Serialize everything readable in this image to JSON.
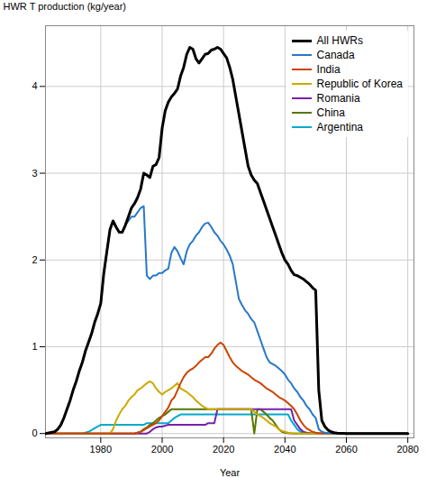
{
  "chart_data": {
    "type": "line",
    "xlabel": "Year",
    "ylabel": "HWR T production (kg/year)",
    "xlim": [
      1962,
      2082
    ],
    "ylim": [
      -0.05,
      4.7
    ],
    "xticks": [
      1980,
      2000,
      2020,
      2040,
      2060,
      2080
    ],
    "yticks": [
      0,
      1,
      2,
      3,
      4
    ],
    "grid": true,
    "legend": "upper right",
    "series": [
      {
        "name": "All HWRs",
        "color": "#000000",
        "x": [
          1962,
          1965,
          1966,
          1967,
          1968,
          1969,
          1970,
          1971,
          1972,
          1973,
          1974,
          1975,
          1976,
          1977,
          1978,
          1979,
          1980,
          1981,
          1982,
          1983,
          1984,
          1985,
          1986,
          1987,
          1988,
          1989,
          1990,
          1991,
          1992,
          1993,
          1994,
          1995,
          1996,
          1997,
          1998,
          1999,
          2000,
          2001,
          2002,
          2003,
          2004,
          2005,
          2006,
          2007,
          2008,
          2009,
          2010,
          2011,
          2012,
          2013,
          2014,
          2015,
          2016,
          2017,
          2018,
          2019,
          2020,
          2021,
          2022,
          2023,
          2024,
          2025,
          2026,
          2027,
          2028,
          2029,
          2030,
          2031,
          2032,
          2033,
          2034,
          2035,
          2036,
          2037,
          2038,
          2039,
          2040,
          2041,
          2042,
          2043,
          2044,
          2045,
          2046,
          2047,
          2048,
          2049,
          2050,
          2051,
          2052,
          2053,
          2054,
          2055,
          2056,
          2057,
          2058,
          2059,
          2060,
          2061,
          2080
        ],
        "values": [
          0.0,
          0.02,
          0.05,
          0.1,
          0.18,
          0.28,
          0.38,
          0.5,
          0.6,
          0.72,
          0.82,
          0.95,
          1.05,
          1.15,
          1.28,
          1.38,
          1.5,
          1.85,
          2.1,
          2.35,
          2.45,
          2.38,
          2.32,
          2.32,
          2.4,
          2.5,
          2.6,
          2.65,
          2.72,
          2.82,
          3.0,
          2.98,
          2.95,
          3.08,
          3.1,
          3.18,
          3.52,
          3.72,
          3.82,
          3.88,
          3.92,
          3.97,
          4.12,
          4.22,
          4.37,
          4.45,
          4.43,
          4.32,
          4.27,
          4.32,
          4.37,
          4.38,
          4.42,
          4.43,
          4.45,
          4.43,
          4.38,
          4.33,
          4.22,
          4.08,
          3.88,
          3.68,
          3.48,
          3.28,
          3.08,
          2.98,
          2.92,
          2.88,
          2.78,
          2.68,
          2.58,
          2.48,
          2.38,
          2.28,
          2.18,
          2.08,
          2.0,
          1.95,
          1.88,
          1.83,
          1.82,
          1.8,
          1.78,
          1.75,
          1.72,
          1.68,
          1.65,
          0.5,
          0.15,
          0.08,
          0.04,
          0.02,
          0.01,
          0.005,
          0.002,
          0.001,
          0.0,
          0.0,
          0.0
        ]
      },
      {
        "name": "Canada",
        "color": "#2878c8",
        "x": [
          1962,
          1965,
          1966,
          1967,
          1968,
          1969,
          1970,
          1971,
          1972,
          1973,
          1974,
          1975,
          1976,
          1977,
          1978,
          1979,
          1980,
          1981,
          1982,
          1983,
          1984,
          1985,
          1986,
          1987,
          1988,
          1989,
          1990,
          1991,
          1992,
          1993,
          1994,
          1995,
          1996,
          1997,
          1998,
          1999,
          2000,
          2001,
          2002,
          2003,
          2004,
          2005,
          2006,
          2007,
          2008,
          2009,
          2010,
          2011,
          2012,
          2013,
          2014,
          2015,
          2016,
          2017,
          2018,
          2019,
          2020,
          2021,
          2022,
          2023,
          2024,
          2025,
          2026,
          2027,
          2028,
          2029,
          2030,
          2031,
          2032,
          2033,
          2034,
          2035,
          2036,
          2037,
          2038,
          2039,
          2040,
          2041,
          2042,
          2043,
          2044,
          2045,
          2046,
          2047,
          2048,
          2049,
          2050,
          2051,
          2052,
          2053,
          2054,
          2055,
          2056,
          2057,
          2058,
          2059,
          2060,
          2080
        ],
        "values": [
          0.0,
          0.02,
          0.05,
          0.1,
          0.18,
          0.28,
          0.38,
          0.5,
          0.6,
          0.72,
          0.82,
          0.95,
          1.05,
          1.15,
          1.28,
          1.38,
          1.5,
          1.85,
          2.1,
          2.35,
          2.45,
          2.38,
          2.32,
          2.32,
          2.4,
          2.45,
          2.5,
          2.5,
          2.55,
          2.6,
          2.62,
          1.82,
          1.78,
          1.82,
          1.82,
          1.85,
          1.85,
          1.88,
          1.9,
          2.08,
          2.15,
          2.1,
          2.02,
          1.95,
          2.1,
          2.18,
          2.22,
          2.28,
          2.32,
          2.38,
          2.42,
          2.43,
          2.38,
          2.32,
          2.28,
          2.22,
          2.18,
          2.12,
          2.05,
          1.95,
          1.75,
          1.55,
          1.48,
          1.42,
          1.38,
          1.32,
          1.28,
          1.18,
          1.08,
          0.98,
          0.88,
          0.82,
          0.8,
          0.78,
          0.75,
          0.72,
          0.68,
          0.62,
          0.58,
          0.52,
          0.48,
          0.42,
          0.38,
          0.32,
          0.28,
          0.22,
          0.18,
          0.05,
          0.02,
          0.01,
          0.005,
          0.001,
          0.0,
          0.0,
          0.0,
          0.0,
          0.0,
          0.0
        ]
      },
      {
        "name": "India",
        "color": "#cc4400",
        "x": [
          1962,
          1991,
          1993,
          1994,
          1995,
          1996,
          1997,
          1998,
          1999,
          2000,
          2001,
          2002,
          2003,
          2004,
          2005,
          2006,
          2007,
          2008,
          2009,
          2010,
          2011,
          2012,
          2013,
          2014,
          2015,
          2016,
          2017,
          2018,
          2019,
          2020,
          2021,
          2022,
          2023,
          2024,
          2025,
          2026,
          2027,
          2028,
          2029,
          2030,
          2031,
          2032,
          2033,
          2034,
          2035,
          2036,
          2037,
          2038,
          2039,
          2040,
          2041,
          2042,
          2043,
          2044,
          2045,
          2046,
          2047,
          2048,
          2049,
          2050,
          2051,
          2052,
          2053,
          2054,
          2055,
          2056,
          2057,
          2058,
          2059,
          2060,
          2080
        ],
        "values": [
          0.0,
          0.0,
          0.02,
          0.04,
          0.06,
          0.08,
          0.1,
          0.12,
          0.15,
          0.2,
          0.25,
          0.3,
          0.38,
          0.42,
          0.5,
          0.58,
          0.65,
          0.7,
          0.73,
          0.75,
          0.78,
          0.82,
          0.85,
          0.88,
          0.88,
          0.92,
          0.98,
          1.02,
          1.05,
          1.02,
          0.95,
          0.88,
          0.82,
          0.78,
          0.75,
          0.72,
          0.7,
          0.68,
          0.65,
          0.62,
          0.6,
          0.58,
          0.55,
          0.52,
          0.5,
          0.48,
          0.45,
          0.42,
          0.4,
          0.38,
          0.35,
          0.32,
          0.28,
          0.22,
          0.15,
          0.1,
          0.06,
          0.04,
          0.02,
          0.01,
          0.005,
          0.002,
          0.001,
          0.0,
          0.0,
          0.0,
          0.0,
          0.0,
          0.0,
          0.0,
          0.0
        ]
      },
      {
        "name": "Republic of Korea",
        "color": "#ccaa00",
        "x": [
          1962,
          1983,
          1984,
          1985,
          1986,
          1987,
          1988,
          1989,
          1990,
          1991,
          1992,
          1993,
          1994,
          1995,
          1996,
          1997,
          1998,
          1999,
          2000,
          2001,
          2002,
          2003,
          2004,
          2005,
          2006,
          2007,
          2008,
          2009,
          2010,
          2011,
          2012,
          2013,
          2014,
          2015,
          2016,
          2017,
          2018,
          2019,
          2020,
          2021,
          2022,
          2023,
          2024,
          2025,
          2026,
          2027,
          2028,
          2029,
          2030,
          2031,
          2032,
          2033,
          2034,
          2035,
          2036,
          2037,
          2038,
          2039,
          2040,
          2041,
          2042,
          2043,
          2044,
          2045,
          2046,
          2047,
          2048,
          2049,
          2050,
          2051,
          2052,
          2053,
          2054,
          2055,
          2056,
          2057,
          2058,
          2059,
          2060,
          2080
        ],
        "values": [
          0.0,
          0.0,
          0.05,
          0.15,
          0.22,
          0.28,
          0.32,
          0.38,
          0.42,
          0.45,
          0.5,
          0.52,
          0.55,
          0.58,
          0.6,
          0.58,
          0.52,
          0.48,
          0.45,
          0.48,
          0.5,
          0.52,
          0.55,
          0.58,
          0.52,
          0.5,
          0.48,
          0.45,
          0.42,
          0.38,
          0.35,
          0.32,
          0.3,
          0.28,
          0.28,
          0.28,
          0.28,
          0.28,
          0.28,
          0.28,
          0.28,
          0.28,
          0.28,
          0.28,
          0.28,
          0.28,
          0.28,
          0.28,
          0.25,
          0.22,
          0.2,
          0.18,
          0.15,
          0.12,
          0.1,
          0.08,
          0.05,
          0.03,
          0.02,
          0.01,
          0.005,
          0.002,
          0.001,
          0.0,
          0.0,
          0.0,
          0.0,
          0.0,
          0.0,
          0.0,
          0.0,
          0.0,
          0.0,
          0.0,
          0.0,
          0.0,
          0.0,
          0.0,
          0.0,
          0.0
        ]
      },
      {
        "name": "Romania",
        "color": "#7722aa",
        "x": [
          1962,
          1995,
          1996,
          1997,
          1998,
          1999,
          2000,
          2001,
          2002,
          2003,
          2004,
          2005,
          2006,
          2007,
          2008,
          2009,
          2010,
          2011,
          2012,
          2013,
          2014,
          2015,
          2016,
          2017,
          2018,
          2019,
          2020,
          2021,
          2022,
          2023,
          2024,
          2025,
          2026,
          2027,
          2028,
          2029,
          2030,
          2031,
          2032,
          2033,
          2034,
          2035,
          2036,
          2037,
          2038,
          2039,
          2040,
          2041,
          2042,
          2043,
          2044,
          2045,
          2046,
          2047,
          2048,
          2049,
          2050,
          2055,
          2060,
          2080
        ],
        "values": [
          0.0,
          0.0,
          0.02,
          0.05,
          0.07,
          0.08,
          0.08,
          0.09,
          0.1,
          0.1,
          0.1,
          0.1,
          0.1,
          0.1,
          0.1,
          0.1,
          0.1,
          0.1,
          0.1,
          0.1,
          0.1,
          0.12,
          0.12,
          0.12,
          0.28,
          0.28,
          0.28,
          0.28,
          0.28,
          0.28,
          0.28,
          0.28,
          0.28,
          0.28,
          0.28,
          0.28,
          0.28,
          0.28,
          0.28,
          0.28,
          0.28,
          0.28,
          0.28,
          0.28,
          0.28,
          0.28,
          0.28,
          0.28,
          0.28,
          0.15,
          0.1,
          0.05,
          0.02,
          0.01,
          0.005,
          0.001,
          0.0,
          0.0,
          0.0,
          0.0
        ]
      },
      {
        "name": "China",
        "color": "#557700",
        "x": [
          1962,
          1991,
          1992,
          1993,
          1994,
          1995,
          1996,
          1997,
          1998,
          1999,
          2000,
          2001,
          2002,
          2003,
          2004,
          2005,
          2006,
          2007,
          2008,
          2009,
          2010,
          2011,
          2012,
          2013,
          2014,
          2015,
          2016,
          2017,
          2018,
          2019,
          2020,
          2021,
          2022,
          2023,
          2024,
          2025,
          2026,
          2027,
          2028,
          2029,
          2030,
          2031,
          2032,
          2033,
          2034,
          2035,
          2036,
          2037,
          2038,
          2039,
          2040,
          2041,
          2042,
          2043,
          2044,
          2045,
          2046,
          2047,
          2048,
          2049,
          2050,
          2080
        ],
        "values": [
          0.0,
          0.0,
          0.01,
          0.02,
          0.05,
          0.07,
          0.1,
          0.12,
          0.15,
          0.18,
          0.2,
          0.22,
          0.25,
          0.28,
          0.28,
          0.28,
          0.28,
          0.28,
          0.28,
          0.28,
          0.28,
          0.28,
          0.28,
          0.28,
          0.28,
          0.28,
          0.28,
          0.28,
          0.28,
          0.28,
          0.28,
          0.28,
          0.28,
          0.28,
          0.28,
          0.28,
          0.28,
          0.28,
          0.28,
          0.28,
          0.0,
          0.28,
          0.28,
          0.25,
          0.22,
          0.18,
          0.15,
          0.1,
          0.05,
          0.02,
          0.01,
          0.005,
          0.001,
          0.0,
          0.0,
          0.0,
          0.0,
          0.0,
          0.0,
          0.0,
          0.0,
          0.0
        ]
      },
      {
        "name": "Argentina",
        "color": "#00aacc",
        "x": [
          1962,
          1974,
          1975,
          1976,
          1977,
          1978,
          1979,
          1980,
          1981,
          1982,
          1983,
          1984,
          1985,
          1986,
          1987,
          1988,
          1989,
          1990,
          1991,
          1992,
          1993,
          1994,
          1995,
          1996,
          1997,
          1998,
          1999,
          2000,
          2001,
          2002,
          2003,
          2004,
          2005,
          2006,
          2007,
          2008,
          2009,
          2010,
          2011,
          2012,
          2013,
          2014,
          2015,
          2016,
          2017,
          2018,
          2019,
          2020,
          2021,
          2022,
          2023,
          2024,
          2025,
          2026,
          2027,
          2028,
          2029,
          2030,
          2031,
          2032,
          2033,
          2034,
          2035,
          2036,
          2037,
          2038,
          2039,
          2040,
          2041,
          2042,
          2043,
          2044,
          2045,
          2046,
          2047,
          2048,
          2049,
          2050,
          2055,
          2060,
          2080
        ],
        "values": [
          0.0,
          0.0,
          0.01,
          0.02,
          0.04,
          0.06,
          0.08,
          0.1,
          0.1,
          0.1,
          0.1,
          0.1,
          0.1,
          0.1,
          0.1,
          0.1,
          0.1,
          0.1,
          0.1,
          0.1,
          0.1,
          0.1,
          0.12,
          0.12,
          0.12,
          0.12,
          0.12,
          0.12,
          0.12,
          0.12,
          0.15,
          0.18,
          0.2,
          0.22,
          0.22,
          0.22,
          0.22,
          0.22,
          0.22,
          0.22,
          0.22,
          0.22,
          0.22,
          0.22,
          0.22,
          0.22,
          0.22,
          0.22,
          0.22,
          0.22,
          0.22,
          0.22,
          0.22,
          0.22,
          0.22,
          0.22,
          0.22,
          0.22,
          0.22,
          0.22,
          0.22,
          0.22,
          0.22,
          0.22,
          0.22,
          0.22,
          0.22,
          0.22,
          0.22,
          0.15,
          0.1,
          0.05,
          0.02,
          0.01,
          0.005,
          0.001,
          0.0,
          0.0,
          0.0,
          0.0,
          0.0
        ]
      }
    ]
  }
}
